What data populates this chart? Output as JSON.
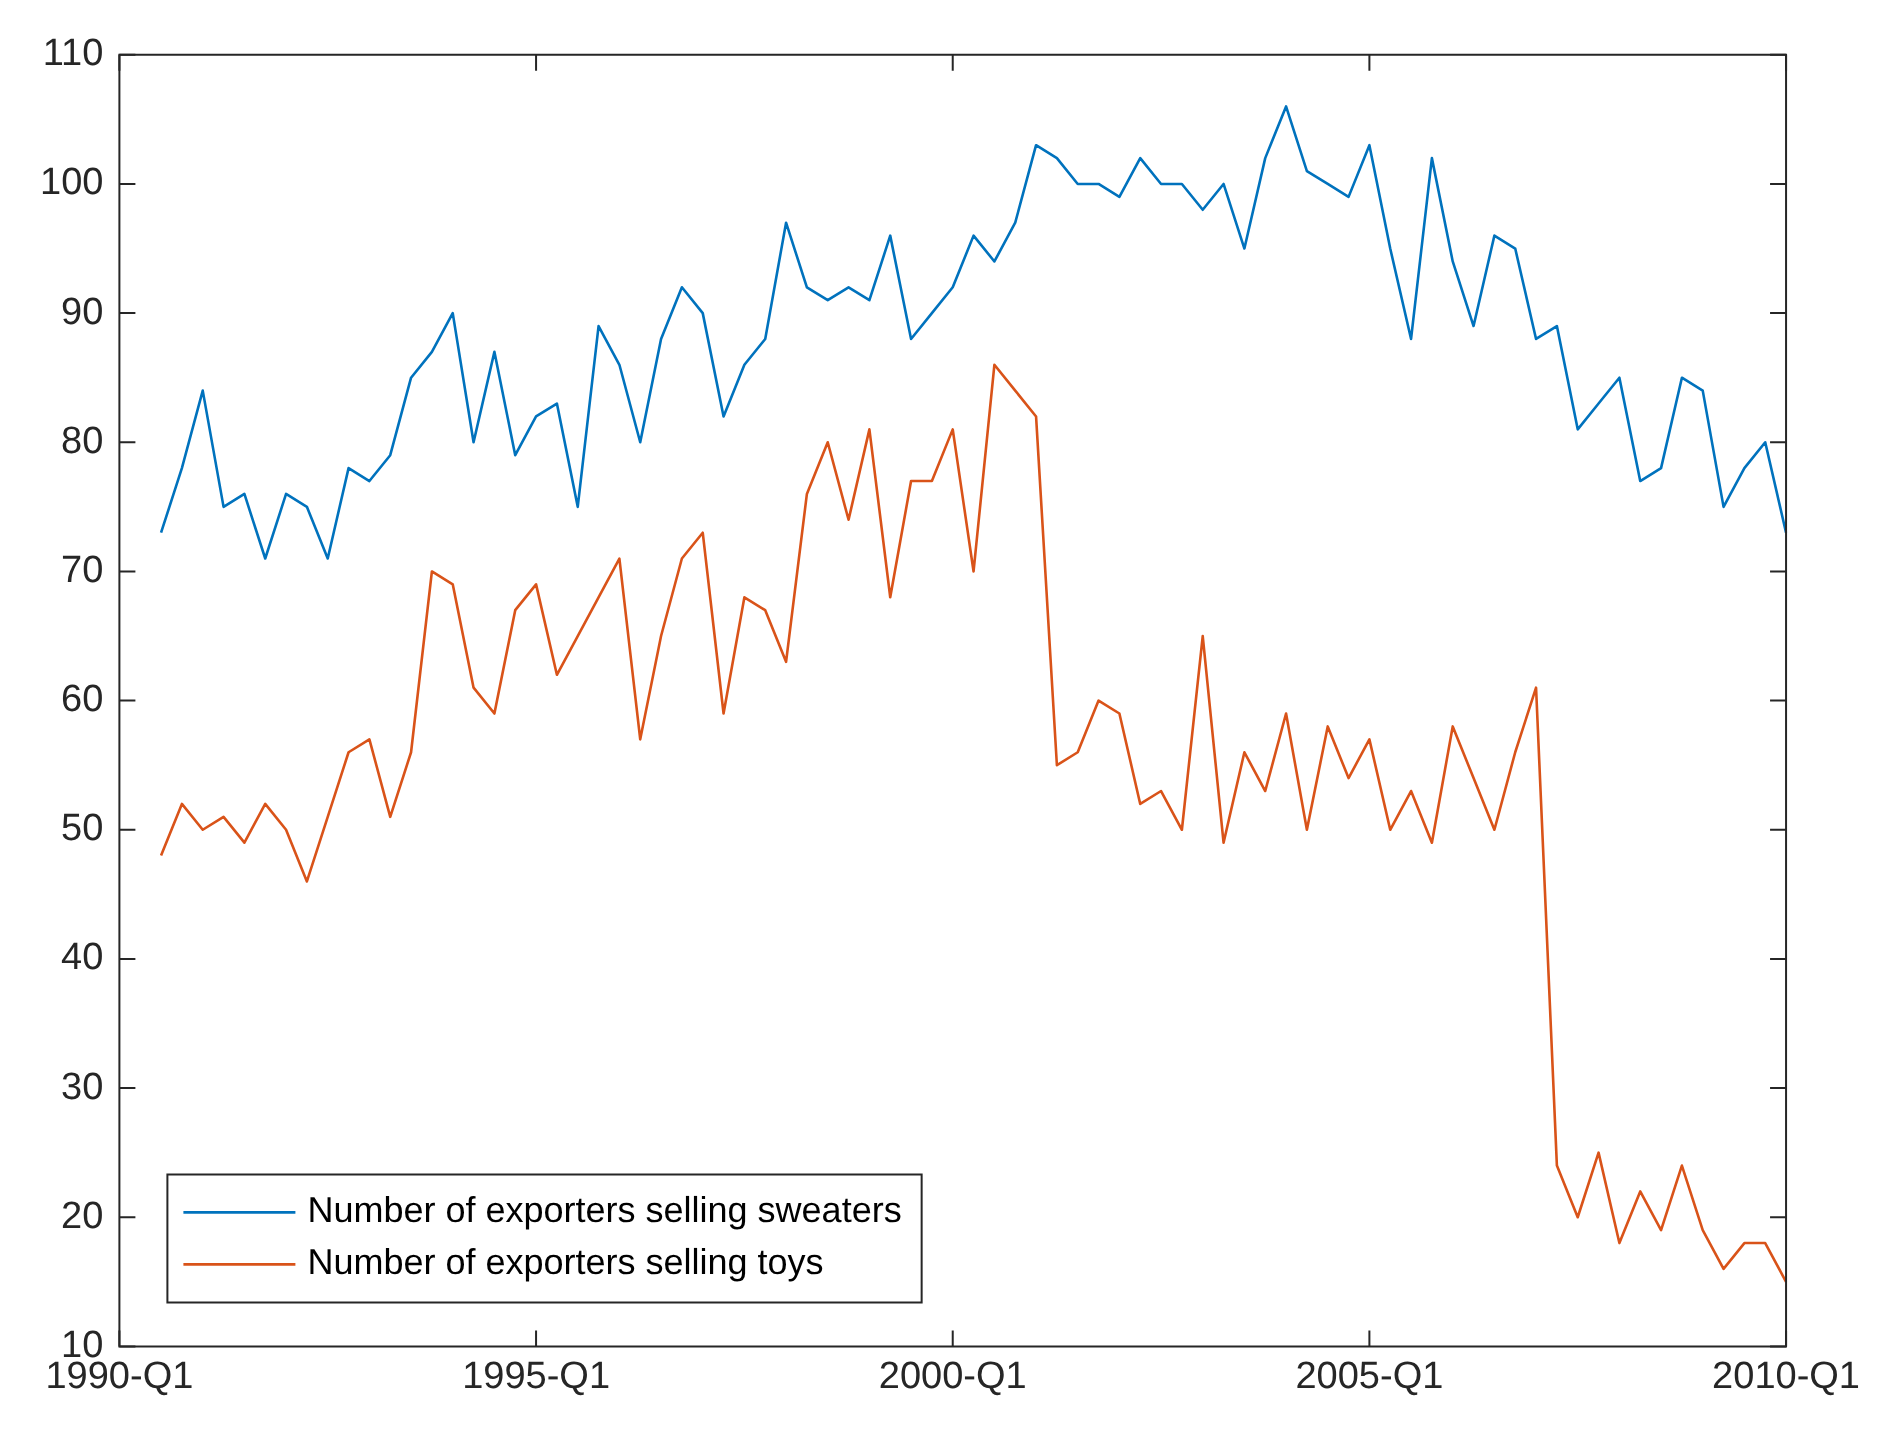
{
  "chart_data": {
    "type": "line",
    "categories": [
      "1990-Q1",
      null,
      null,
      null,
      null,
      null,
      null,
      null,
      null,
      null,
      null,
      null,
      null,
      null,
      null,
      null,
      null,
      null,
      null,
      null,
      "1995-Q1",
      null,
      null,
      null,
      null,
      null,
      null,
      null,
      null,
      null,
      null,
      null,
      null,
      null,
      null,
      null,
      null,
      null,
      null,
      null,
      "2000-Q1",
      null,
      null,
      null,
      null,
      null,
      null,
      null,
      null,
      null,
      null,
      null,
      null,
      null,
      null,
      null,
      null,
      null,
      null,
      null,
      "2005-Q1",
      null,
      null,
      null,
      null,
      null,
      null,
      null,
      null,
      null,
      null,
      null,
      null,
      null,
      null,
      null,
      null,
      null,
      null,
      null,
      "2010-Q1"
    ],
    "series": [
      {
        "name": "Number of exporters selling sweaters",
        "color": "#0072bd",
        "values": [
          null,
          null,
          73,
          78,
          84,
          75,
          76,
          71,
          76,
          75,
          71,
          78,
          77,
          79,
          85,
          87,
          90,
          80,
          87,
          79,
          82,
          83,
          75,
          89,
          86,
          80,
          88,
          92,
          90,
          82,
          86,
          88,
          97,
          92,
          91,
          92,
          91,
          96,
          88,
          90,
          92,
          96,
          94,
          97,
          103,
          102,
          100,
          100,
          99,
          102,
          100,
          100,
          98,
          100,
          95,
          102,
          106,
          101,
          100,
          99,
          103,
          95,
          88,
          102,
          94,
          89,
          96,
          95,
          88,
          89,
          81,
          83,
          85,
          77,
          78,
          85,
          84,
          75,
          78,
          80,
          73
        ]
      },
      {
        "name": "Number of exporters selling toys",
        "color": "#d95319",
        "values": [
          null,
          null,
          48,
          52,
          50,
          51,
          49,
          52,
          50,
          46,
          51,
          56,
          57,
          51,
          56,
          70,
          69,
          61,
          59,
          67,
          69,
          62,
          65,
          68,
          71,
          57,
          65,
          71,
          73,
          59,
          68,
          67,
          63,
          76,
          80,
          74,
          81,
          68,
          77,
          77,
          81,
          70,
          86,
          84,
          82,
          55,
          56,
          60,
          59,
          52,
          53,
          50,
          65,
          49,
          56,
          53,
          59,
          50,
          58,
          54,
          57,
          50,
          53,
          49,
          58,
          54,
          50,
          56,
          61,
          24,
          20,
          25,
          18,
          22,
          19,
          24,
          19,
          16,
          18,
          18,
          15
        ]
      }
    ],
    "ylim": [
      10,
      110
    ],
    "yticks": [
      10,
      20,
      30,
      40,
      50,
      60,
      70,
      80,
      90,
      100,
      110
    ],
    "legend": "bottom left",
    "marker": "none",
    "line_style": "solid"
  }
}
